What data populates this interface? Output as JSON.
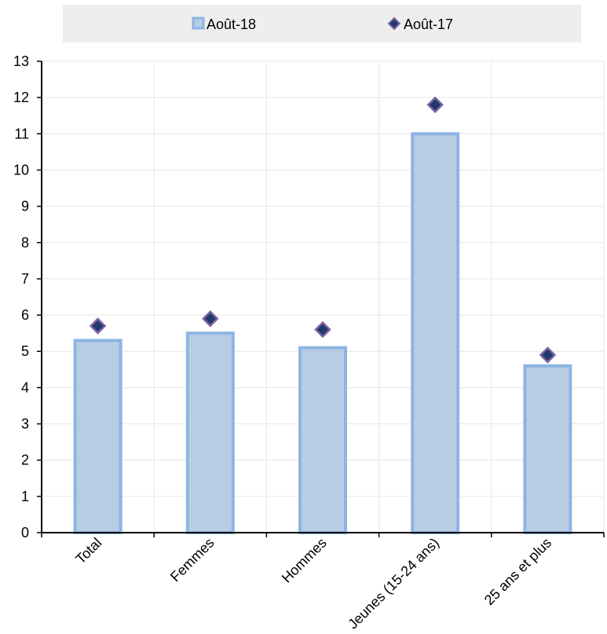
{
  "chart_data": {
    "type": "bar",
    "categories": [
      "Total",
      "Femmes",
      "Hommes",
      "Jeunes (15-24 ans)",
      "25 ans et plus"
    ],
    "series": [
      {
        "name": "Août-18",
        "kind": "bar",
        "values": [
          5.3,
          5.5,
          5.1,
          11.0,
          4.6
        ]
      },
      {
        "name": "Août-17",
        "kind": "marker-diamond",
        "values": [
          5.7,
          5.9,
          5.6,
          11.8,
          4.9
        ]
      }
    ],
    "title": "",
    "xlabel": "",
    "ylabel": "",
    "ylim": [
      0,
      13
    ],
    "yticks": [
      "0",
      "1",
      "2",
      "3",
      "4",
      "5",
      "6",
      "7",
      "8",
      "9",
      "10",
      "11",
      "12",
      "13"
    ],
    "grid": "vertical and horizontal, light",
    "legend": "top-center",
    "colors": {
      "bar_fill": "#b8cce4",
      "bar_stroke": "#8eb4e3",
      "marker_fill": "#1f3a6e",
      "marker_stroke": "#8064a2",
      "legend_bg": "#eeeeee",
      "grid": "#e6e6e6",
      "axis": "#000000"
    }
  }
}
